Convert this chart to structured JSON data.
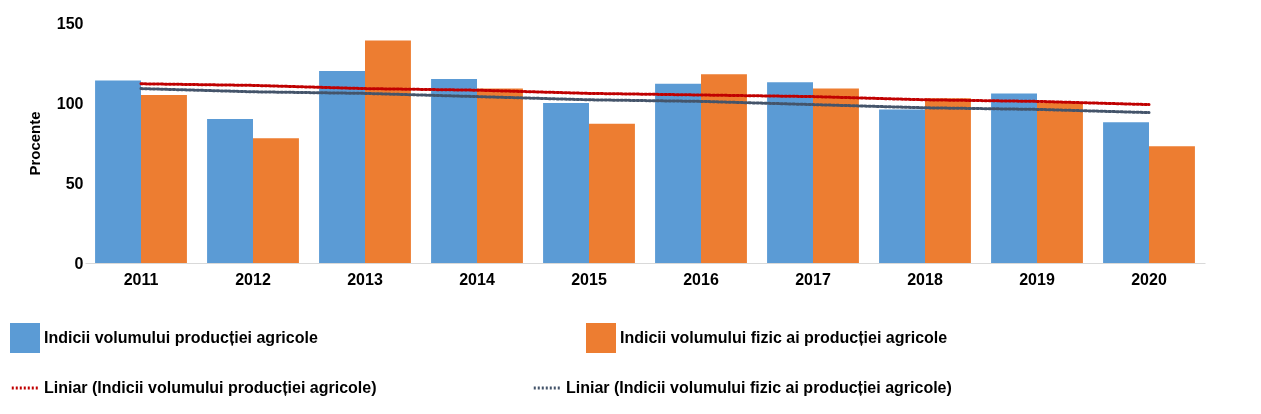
{
  "chart_data": {
    "type": "bar",
    "ylabel": "Procente",
    "categories": [
      "2011",
      "2012",
      "2013",
      "2014",
      "2015",
      "2016",
      "2017",
      "2018",
      "2019",
      "2020"
    ],
    "ylim": [
      0,
      150
    ],
    "yticks": [
      0,
      50,
      100,
      150
    ],
    "grid": false,
    "legend": "bottom",
    "series": [
      {
        "name": "Indicii volumului producției agricole",
        "color": "#5b9bd5",
        "values": [
          114,
          90,
          120,
          115,
          100,
          112,
          113,
          96,
          106,
          88
        ]
      },
      {
        "name": "Indicii volumului fizic ai producției agricole",
        "color": "#ed7d31",
        "values": [
          105,
          78,
          139,
          109,
          87,
          118,
          109,
          103,
          100,
          73
        ]
      },
      {
        "name": "Liniar (Indicii volumului producției agricole)",
        "type": "line",
        "line_style": "dotted",
        "color": "#c00000",
        "values": [
          112,
          111,
          109,
          108,
          106,
          105,
          104,
          102,
          101,
          99
        ]
      },
      {
        "name": "Liniar (Indicii volumului fizic ai producției agricole)",
        "type": "line",
        "line_style": "dotted",
        "color": "#44546a",
        "values": [
          109,
          107,
          106,
          104,
          102,
          101,
          99,
          97,
          96,
          94
        ]
      }
    ]
  }
}
